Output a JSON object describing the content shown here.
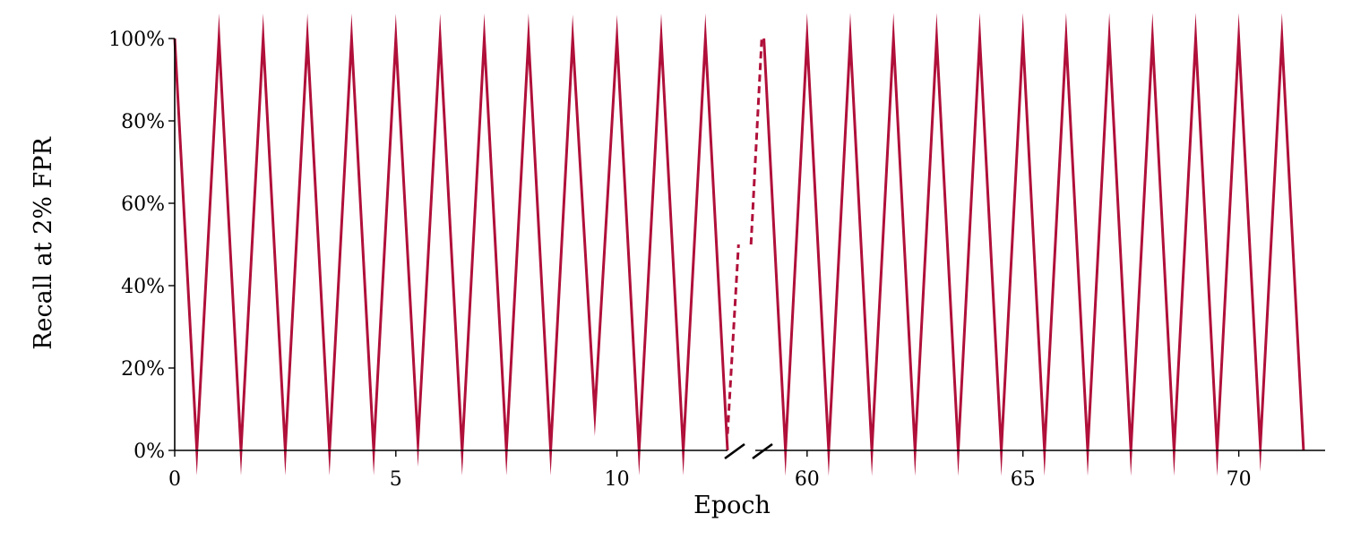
{
  "chart_data": {
    "type": "line",
    "title": "",
    "xlabel": "Epoch",
    "ylabel": "Recall at 2% FPR",
    "line_color": "#b0103a",
    "grid": false,
    "broken_x_axis": true,
    "ylim": [
      0,
      1
    ],
    "yticks": [
      {
        "value": 0,
        "label": "0%"
      },
      {
        "value": 0.2,
        "label": "20%"
      },
      {
        "value": 0.4,
        "label": "40%"
      },
      {
        "value": 0.6,
        "label": "60%"
      },
      {
        "value": 0.8,
        "label": "80%"
      },
      {
        "value": 1.0,
        "label": "100%"
      }
    ],
    "panels": [
      {
        "xlim": [
          0,
          12.5
        ],
        "xticks": [
          {
            "value": 0,
            "label": "0"
          },
          {
            "value": 5,
            "label": "5"
          },
          {
            "value": 10,
            "label": "10"
          }
        ],
        "series": [
          {
            "style": "solid",
            "x": [
              0,
              0.5,
              1,
              1.5,
              2,
              2.5,
              3,
              3.5,
              4,
              4.5,
              5,
              5.5,
              6,
              6.5,
              7,
              7.5,
              8,
              8.5,
              9,
              9.5,
              10,
              10.5,
              11,
              11.5,
              12,
              12.5
            ],
            "y": [
              1.0,
              0.0,
              1.0,
              0.0,
              1.0,
              0.0,
              1.0,
              0.0,
              1.0,
              0.0,
              1.0,
              0.02,
              1.0,
              0.0,
              1.0,
              0.0,
              1.0,
              0.0,
              1.0,
              0.09,
              1.0,
              0.0,
              1.0,
              0.0,
              1.0,
              0.0
            ]
          },
          {
            "style": "dashed",
            "x": [
              12.5,
              12.75
            ],
            "y": [
              0.04,
              0.5
            ]
          }
        ]
      },
      {
        "xlim": [
          58.8,
          72.0
        ],
        "xticks": [
          {
            "value": 60,
            "label": "60"
          },
          {
            "value": 65,
            "label": "65"
          },
          {
            "value": 70,
            "label": "70"
          }
        ],
        "series": [
          {
            "style": "dashed",
            "x": [
              58.7,
              58.95
            ],
            "y": [
              0.5,
              1.0
            ]
          },
          {
            "style": "solid",
            "x": [
              59.0,
              59.5,
              60,
              60.5,
              61,
              61.5,
              62,
              62.5,
              63,
              63.5,
              64,
              64.5,
              65,
              65.5,
              66,
              66.5,
              67,
              67.5,
              68,
              68.5,
              69,
              69.5,
              70,
              70.5,
              71,
              71.5
            ],
            "y": [
              1.0,
              0.0,
              1.0,
              0.0,
              1.0,
              0.0,
              1.0,
              0.0,
              1.0,
              0.0,
              1.0,
              0.0,
              1.0,
              0.0,
              1.0,
              0.0,
              1.0,
              0.0,
              1.0,
              0.0,
              1.0,
              0.0,
              1.0,
              0.01,
              1.0,
              0.0
            ]
          }
        ]
      }
    ]
  }
}
